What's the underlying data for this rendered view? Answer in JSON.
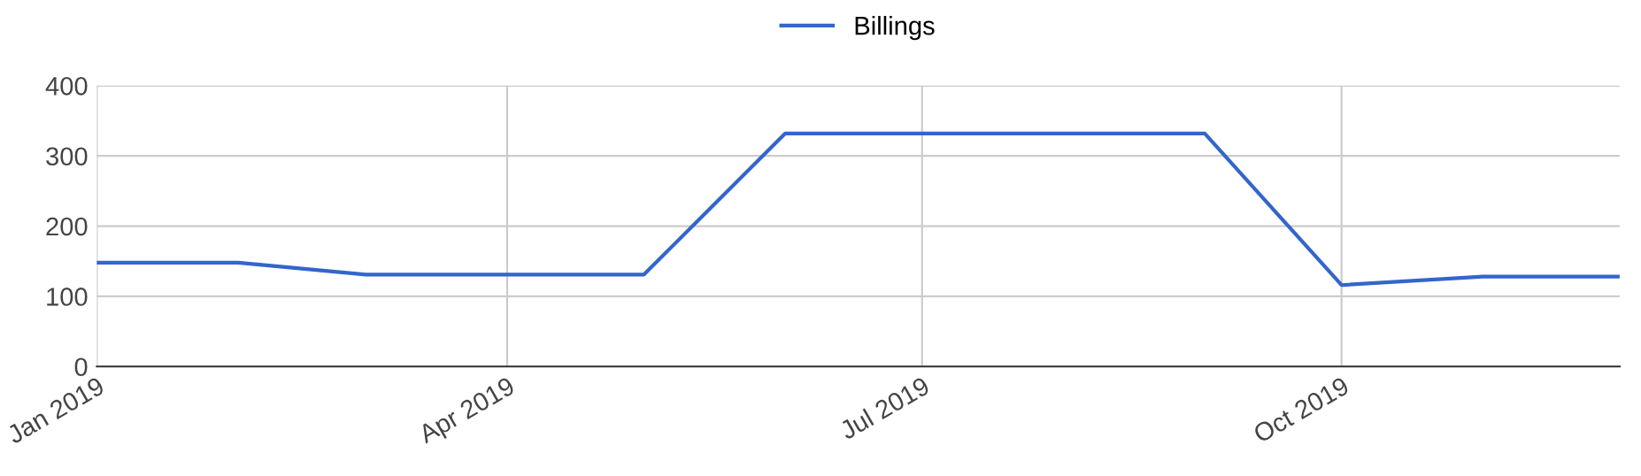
{
  "chart_data": {
    "type": "line",
    "x": [
      "2019-01",
      "2019-02",
      "2019-03",
      "2019-04",
      "2019-05",
      "2019-06",
      "2019-07",
      "2019-08",
      "2019-09",
      "2019-10",
      "2019-11",
      "2019-12"
    ],
    "series": [
      {
        "name": "Billings",
        "color": "#3366cc",
        "values": [
          148,
          148,
          131,
          131,
          131,
          332,
          332,
          332,
          332,
          116,
          128,
          128
        ]
      }
    ],
    "xlim": [
      "2019-01",
      "2019-12"
    ],
    "xticks": [
      {
        "value": "2019-01",
        "label": "Jan 2019"
      },
      {
        "value": "2019-04",
        "label": "Apr 2019"
      },
      {
        "value": "2019-07",
        "label": "Jul 2019"
      },
      {
        "value": "2019-10",
        "label": "Oct 2019"
      }
    ],
    "ylim": [
      0,
      400
    ],
    "yticks": [
      0,
      100,
      200,
      300,
      400
    ],
    "grid": true,
    "legend": "top",
    "marker": "none",
    "line_style": "solid"
  }
}
